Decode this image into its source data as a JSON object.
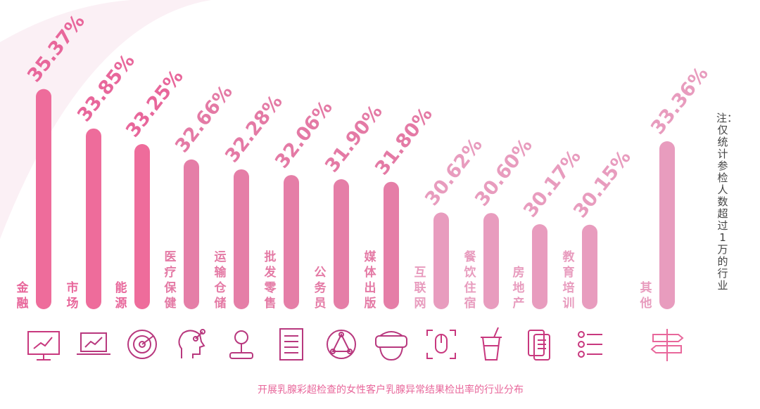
{
  "chart_data": {
    "type": "bar",
    "categories": [
      "金融",
      "市场",
      "能源",
      "医疗保健",
      "运输仓储",
      "批发零售",
      "公务员",
      "媒体出版",
      "互联网",
      "餐饮住宿",
      "房地产",
      "教育培训",
      "其他"
    ],
    "values": [
      35.37,
      33.85,
      33.25,
      32.66,
      32.28,
      32.06,
      31.9,
      31.8,
      30.62,
      30.6,
      30.17,
      30.15,
      33.36
    ],
    "value_labels": [
      "35.37%",
      "33.85%",
      "33.25%",
      "32.66%",
      "32.28%",
      "32.06%",
      "31.90%",
      "31.80%",
      "30.62%",
      "30.60%",
      "30.17%",
      "30.15%",
      "33.36%"
    ],
    "icons": [
      "monitor-chart-icon",
      "laptop-chart-icon",
      "radar-icon",
      "head-circuit-icon",
      "joystick-icon",
      "document-list-icon",
      "network-triangle-icon",
      "vr-headset-icon",
      "mouse-frame-icon",
      "cup-icon",
      "device-stack-icon",
      "list-icon",
      "signpost-icon"
    ],
    "colors": [
      "#ee6c9b",
      "#ee6c9b",
      "#ee6c9b",
      "#e57ea7",
      "#e57ea7",
      "#e57ea7",
      "#e57ea7",
      "#e57ea7",
      "#e89cbe",
      "#e89cbe",
      "#e89cbe",
      "#e89cbe",
      "#e89cbe"
    ],
    "label_colors": [
      "#e8679b",
      "#e8679b",
      "#e8679b",
      "#e47aa5",
      "#e47aa5",
      "#e47aa5",
      "#e47aa5",
      "#e47aa5",
      "#e89cbe",
      "#e89cbe",
      "#e89cbe",
      "#e89cbe",
      "#e89cbe"
    ],
    "icon_colors": [
      "#c8387e",
      "#b8387e",
      "#b8387e",
      "#b8387e",
      "#b8387e",
      "#b8387e",
      "#b8387e",
      "#b8387e",
      "#c8387e",
      "#c8387e",
      "#c8387e",
      "#c8387e",
      "#e8679b"
    ],
    "note": "注：仅统计参检人数超过1万的行业",
    "caption": "开展乳腺彩超检查的女性客户乳腺异常结果检出率的行业分布"
  }
}
